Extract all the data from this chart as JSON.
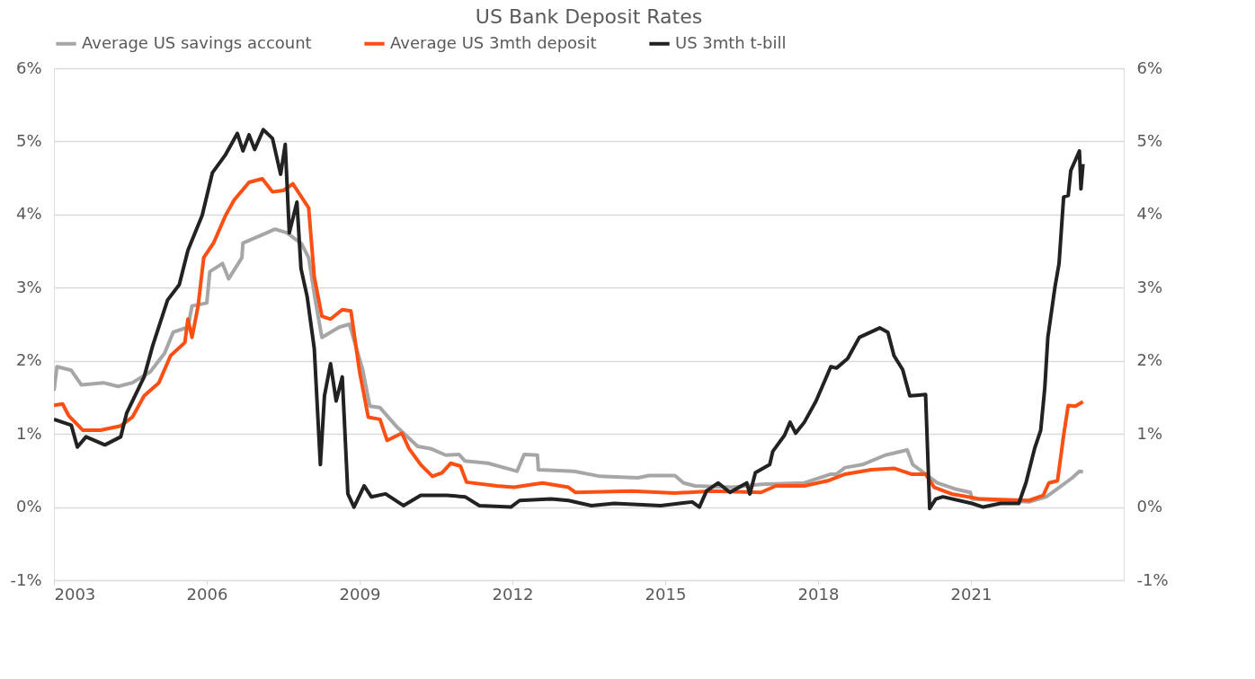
{
  "chart_data": {
    "type": "line",
    "title": "US Bank Deposit Rates",
    "xlim": [
      2003,
      2024
    ],
    "xticks": [
      2003,
      2006,
      2009,
      2012,
      2015,
      2018,
      2021
    ],
    "ylim": [
      -1,
      6
    ],
    "yticks": [
      {
        "value": -1,
        "label": "-1%"
      },
      {
        "value": 0,
        "label": "0%"
      },
      {
        "value": 1,
        "label": "1%"
      },
      {
        "value": 2,
        "label": "2%"
      },
      {
        "value": 3,
        "label": "3%"
      },
      {
        "value": 4,
        "label": "4%"
      },
      {
        "value": 5,
        "label": "5%"
      },
      {
        "value": 6,
        "label": "6%"
      }
    ],
    "y2lim": [
      -1,
      6
    ],
    "y2ticks": [
      {
        "value": -1,
        "label": "-1%"
      },
      {
        "value": 0,
        "label": "0%"
      },
      {
        "value": 1,
        "label": "1%"
      },
      {
        "value": 2,
        "label": "2%"
      },
      {
        "value": 3,
        "label": "3%"
      },
      {
        "value": 4,
        "label": "4%"
      },
      {
        "value": 5,
        "label": "5%"
      },
      {
        "value": 6,
        "label": "6%"
      }
    ],
    "grid": "y",
    "legend": "top",
    "marker": "none",
    "line_style": "solid",
    "series": [
      {
        "name": "Average US savings account",
        "color": "#a6a6a6",
        "x": [
          2003.0,
          2003.06,
          2003.34,
          2003.54,
          2003.97,
          2004.26,
          2004.54,
          2004.89,
          2005.17,
          2005.34,
          2005.63,
          2005.71,
          2006.0,
          2006.06,
          2006.31,
          2006.43,
          2006.69,
          2006.71,
          2007.11,
          2007.34,
          2007.57,
          2007.86,
          2008.0,
          2008.14,
          2008.26,
          2008.6,
          2008.8,
          2009.06,
          2009.2,
          2009.4,
          2009.74,
          2010.14,
          2010.39,
          2010.69,
          2010.95,
          2011.07,
          2011.52,
          2012.09,
          2012.23,
          2012.49,
          2012.51,
          2013.21,
          2013.72,
          2014.46,
          2014.68,
          2015.19,
          2015.36,
          2015.58,
          2016.32,
          2016.88,
          2017.73,
          2018.25,
          2018.36,
          2018.53,
          2018.87,
          2019.32,
          2019.75,
          2019.86,
          2020.11,
          2020.34,
          2020.73,
          2020.99,
          2021.02,
          2022.14,
          2022.48,
          2022.7,
          2022.99,
          2023.13,
          2023.2
        ],
        "values": [
          1.59,
          1.92,
          1.87,
          1.67,
          1.7,
          1.65,
          1.7,
          1.85,
          2.1,
          2.39,
          2.46,
          2.75,
          2.79,
          3.22,
          3.33,
          3.12,
          3.41,
          3.61,
          3.73,
          3.8,
          3.75,
          3.6,
          3.41,
          2.79,
          2.32,
          2.46,
          2.5,
          1.88,
          1.38,
          1.36,
          1.09,
          0.83,
          0.8,
          0.71,
          0.72,
          0.63,
          0.6,
          0.49,
          0.72,
          0.71,
          0.51,
          0.49,
          0.42,
          0.4,
          0.43,
          0.43,
          0.33,
          0.29,
          0.27,
          0.31,
          0.33,
          0.45,
          0.45,
          0.54,
          0.58,
          0.71,
          0.78,
          0.58,
          0.45,
          0.33,
          0.24,
          0.2,
          0.11,
          0.07,
          0.14,
          0.25,
          0.4,
          0.49,
          0.48
        ]
      },
      {
        "name": "Average US 3mth deposit",
        "color": "#fc4f14",
        "x": [
          2003.0,
          2003.17,
          2003.29,
          2003.57,
          2003.91,
          2004.31,
          2004.54,
          2004.77,
          2005.06,
          2005.29,
          2005.57,
          2005.63,
          2005.71,
          2005.83,
          2005.94,
          2006.14,
          2006.37,
          2006.54,
          2006.83,
          2007.09,
          2007.29,
          2007.51,
          2007.69,
          2008.0,
          2008.11,
          2008.26,
          2008.43,
          2008.66,
          2008.83,
          2009.0,
          2009.17,
          2009.4,
          2009.54,
          2009.83,
          2009.97,
          2010.2,
          2010.43,
          2010.62,
          2010.79,
          2010.98,
          2011.1,
          2011.69,
          2012.03,
          2012.59,
          2013.1,
          2013.24,
          2014.34,
          2015.19,
          2015.92,
          2016.88,
          2017.17,
          2017.73,
          2018.19,
          2018.53,
          2019.04,
          2019.49,
          2019.83,
          2020.11,
          2020.28,
          2020.62,
          2021.19,
          2022.14,
          2022.42,
          2022.53,
          2022.7,
          2022.82,
          2022.91,
          2023.05,
          2023.2
        ],
        "values": [
          1.39,
          1.41,
          1.25,
          1.05,
          1.05,
          1.11,
          1.23,
          1.52,
          1.7,
          2.07,
          2.25,
          2.57,
          2.32,
          2.75,
          3.41,
          3.62,
          3.99,
          4.2,
          4.44,
          4.49,
          4.31,
          4.33,
          4.42,
          4.09,
          3.15,
          2.61,
          2.57,
          2.7,
          2.68,
          1.85,
          1.23,
          1.2,
          0.91,
          1.01,
          0.8,
          0.58,
          0.42,
          0.47,
          0.6,
          0.56,
          0.34,
          0.29,
          0.27,
          0.33,
          0.27,
          0.2,
          0.22,
          0.19,
          0.22,
          0.2,
          0.29,
          0.29,
          0.36,
          0.45,
          0.51,
          0.53,
          0.45,
          0.45,
          0.27,
          0.18,
          0.11,
          0.09,
          0.16,
          0.33,
          0.36,
          0.98,
          1.39,
          1.38,
          1.44
        ]
      },
      {
        "name": "US 3mth t-bill",
        "color": "#222222",
        "x": [
          2003.0,
          2003.34,
          2003.46,
          2003.63,
          2004.0,
          2004.31,
          2004.43,
          2004.77,
          2004.94,
          2005.23,
          2005.46,
          2005.63,
          2005.91,
          2006.11,
          2006.37,
          2006.6,
          2006.71,
          2006.83,
          2006.94,
          2007.11,
          2007.29,
          2007.45,
          2007.54,
          2007.62,
          2007.77,
          2007.85,
          2007.97,
          2008.11,
          2008.23,
          2008.31,
          2008.43,
          2008.54,
          2008.66,
          2008.77,
          2008.89,
          2009.09,
          2009.23,
          2009.51,
          2009.86,
          2010.2,
          2010.71,
          2011.07,
          2011.35,
          2011.97,
          2012.14,
          2012.76,
          2013.1,
          2013.55,
          2014.0,
          2014.91,
          2015.53,
          2015.67,
          2015.81,
          2016.04,
          2016.27,
          2016.6,
          2016.66,
          2016.77,
          2017.05,
          2017.11,
          2017.34,
          2017.45,
          2017.56,
          2017.73,
          2017.96,
          2018.25,
          2018.36,
          2018.58,
          2018.81,
          2019.21,
          2019.37,
          2019.49,
          2019.66,
          2019.8,
          2020.11,
          2020.19,
          2020.31,
          2020.45,
          2021.02,
          2021.24,
          2021.58,
          2021.94,
          2022.08,
          2022.25,
          2022.37,
          2022.45,
          2022.51,
          2022.65,
          2022.73,
          2022.82,
          2022.91,
          2022.96,
          2023.13,
          2023.16,
          2023.2
        ],
        "values": [
          1.2,
          1.12,
          0.82,
          0.96,
          0.85,
          0.96,
          1.29,
          1.78,
          2.21,
          2.83,
          3.04,
          3.51,
          3.99,
          4.57,
          4.82,
          5.11,
          4.87,
          5.09,
          4.89,
          5.16,
          5.04,
          4.55,
          4.96,
          3.75,
          4.17,
          3.26,
          2.88,
          2.17,
          0.58,
          1.52,
          1.96,
          1.45,
          1.78,
          0.18,
          0.0,
          0.29,
          0.14,
          0.18,
          0.02,
          0.16,
          0.16,
          0.14,
          0.02,
          0.0,
          0.09,
          0.11,
          0.09,
          0.02,
          0.05,
          0.02,
          0.07,
          0.0,
          0.22,
          0.33,
          0.2,
          0.33,
          0.18,
          0.47,
          0.58,
          0.76,
          0.98,
          1.16,
          1.01,
          1.16,
          1.45,
          1.92,
          1.9,
          2.03,
          2.32,
          2.45,
          2.39,
          2.07,
          1.88,
          1.52,
          1.54,
          -0.02,
          0.11,
          0.14,
          0.05,
          0.0,
          0.05,
          0.05,
          0.33,
          0.8,
          1.05,
          1.63,
          2.32,
          3.01,
          3.33,
          4.24,
          4.26,
          4.6,
          4.87,
          4.35,
          4.69
        ]
      }
    ]
  }
}
